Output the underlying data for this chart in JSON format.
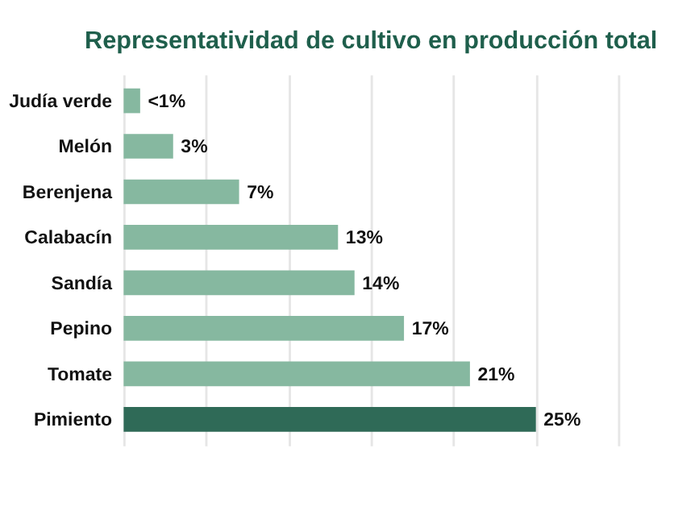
{
  "chart_data": {
    "type": "bar",
    "orientation": "horizontal",
    "title": "Representatividad de cultivo en producción total",
    "categories": [
      "Judía verde",
      "Melón",
      "Berenjena",
      "Calabacín",
      "Sandía",
      "Pepino",
      "Tomate",
      "Pimiento"
    ],
    "values": [
      1,
      3,
      7,
      13,
      14,
      17,
      21,
      25
    ],
    "value_labels": [
      "<1%",
      "3%",
      "7%",
      "13%",
      "14%",
      "17%",
      "21%",
      "25%"
    ],
    "colors": [
      "#86b8a0",
      "#86b8a0",
      "#86b8a0",
      "#86b8a0",
      "#86b8a0",
      "#86b8a0",
      "#86b8a0",
      "#2f6a57"
    ],
    "xlim": [
      0,
      30
    ],
    "xticks": [
      {
        "value": 0,
        "label": null
      },
      {
        "value": 5,
        "label": null
      },
      {
        "value": 10,
        "label": null
      },
      {
        "value": 15,
        "label": null
      },
      {
        "value": 20,
        "label": null
      },
      {
        "value": 25,
        "label": null
      },
      {
        "value": 30,
        "label": null
      }
    ],
    "grid": "x",
    "tick_labels": "y"
  }
}
